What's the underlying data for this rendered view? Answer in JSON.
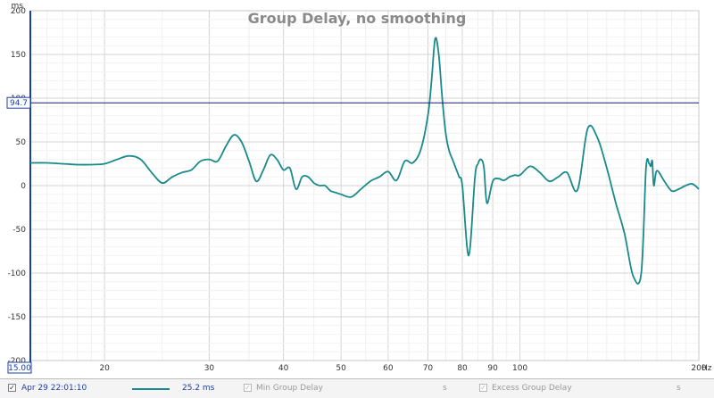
{
  "chart_data": {
    "type": "line",
    "title": "Group Delay, no smoothing",
    "ylabel": "ms",
    "xunit": "Hz",
    "xscale": "log",
    "xlim": [
      15,
      200
    ],
    "ylim": [
      -200,
      200
    ],
    "grid": true,
    "x_ticks": [
      {
        "value": 20,
        "label": "20"
      },
      {
        "value": 30,
        "label": "30"
      },
      {
        "value": 40,
        "label": "40"
      },
      {
        "value": 50,
        "label": "50"
      },
      {
        "value": 60,
        "label": "60"
      },
      {
        "value": 70,
        "label": "70"
      },
      {
        "value": 80,
        "label": "80"
      },
      {
        "value": 90,
        "label": "90"
      },
      {
        "value": 100,
        "label": "100"
      },
      {
        "value": 200,
        "label": "200"
      }
    ],
    "x_minor_grid": [
      16,
      17,
      18,
      19,
      25,
      35,
      45,
      55,
      65,
      75,
      85,
      95,
      110,
      120,
      130,
      140,
      150,
      160,
      170,
      180,
      190
    ],
    "y_ticks": [
      {
        "value": 200,
        "label": "200"
      },
      {
        "value": 150,
        "label": "150"
      },
      {
        "value": 100,
        "label": "100"
      },
      {
        "value": 50,
        "label": "50"
      },
      {
        "value": 0,
        "label": "0"
      },
      {
        "value": -50,
        "label": "-50"
      },
      {
        "value": -100,
        "label": "-100"
      },
      {
        "value": -150,
        "label": "-150"
      },
      {
        "value": -200,
        "label": "-200"
      }
    ],
    "cursor": {
      "y": 94.7,
      "y_label": "94.7",
      "x": 15,
      "x_label": "15.00"
    },
    "series": [
      {
        "color": "#198a8a",
        "x": [
          15,
          16,
          17,
          18,
          19,
          20,
          21,
          22,
          23,
          24,
          25,
          26,
          27,
          28,
          29,
          30,
          31,
          32,
          33,
          34,
          35,
          36,
          37,
          38,
          39,
          40,
          41,
          42,
          43,
          44,
          45,
          46,
          47,
          48,
          49,
          50,
          52,
          54,
          56,
          58,
          60,
          62,
          64,
          66,
          68,
          70,
          71,
          72,
          73,
          74,
          75,
          76,
          77,
          78,
          79,
          80,
          82,
          84,
          85,
          86,
          87,
          88,
          90,
          92,
          94,
          96,
          98,
          100,
          104,
          108,
          112,
          116,
          120,
          125,
          130,
          135,
          140,
          145,
          150,
          155,
          160,
          163,
          165,
          166,
          167,
          168,
          170,
          175,
          180,
          185,
          190,
          195,
          200
        ],
        "y": [
          26,
          26,
          25,
          24,
          24,
          25,
          30,
          34,
          30,
          15,
          3,
          10,
          15,
          18,
          28,
          30,
          28,
          45,
          58,
          50,
          28,
          5,
          18,
          35,
          30,
          18,
          20,
          -4,
          10,
          10,
          3,
          0,
          0,
          -6,
          -8,
          -10,
          -13,
          -4,
          5,
          10,
          16,
          6,
          28,
          26,
          40,
          80,
          120,
          168,
          150,
          100,
          60,
          40,
          30,
          20,
          10,
          0,
          -80,
          10,
          25,
          30,
          20,
          -20,
          5,
          8,
          6,
          10,
          12,
          12,
          22,
          15,
          5,
          10,
          15,
          -5,
          65,
          55,
          20,
          -20,
          -55,
          -103,
          -100,
          20,
          25,
          22,
          28,
          0,
          17,
          5,
          -6,
          -4,
          0,
          2,
          -4
        ]
      }
    ]
  },
  "legend": {
    "measurement": {
      "checked": "✓",
      "label": "Apr 29 22:01:10",
      "color": "#198a8a",
      "value": "25.2 ms"
    },
    "min_group_delay": {
      "checked": "✓",
      "label": "Min Group Delay",
      "unit": "s"
    },
    "excess_group_delay": {
      "checked": "✓",
      "label": "Excess Group Delay",
      "unit": "s"
    }
  }
}
